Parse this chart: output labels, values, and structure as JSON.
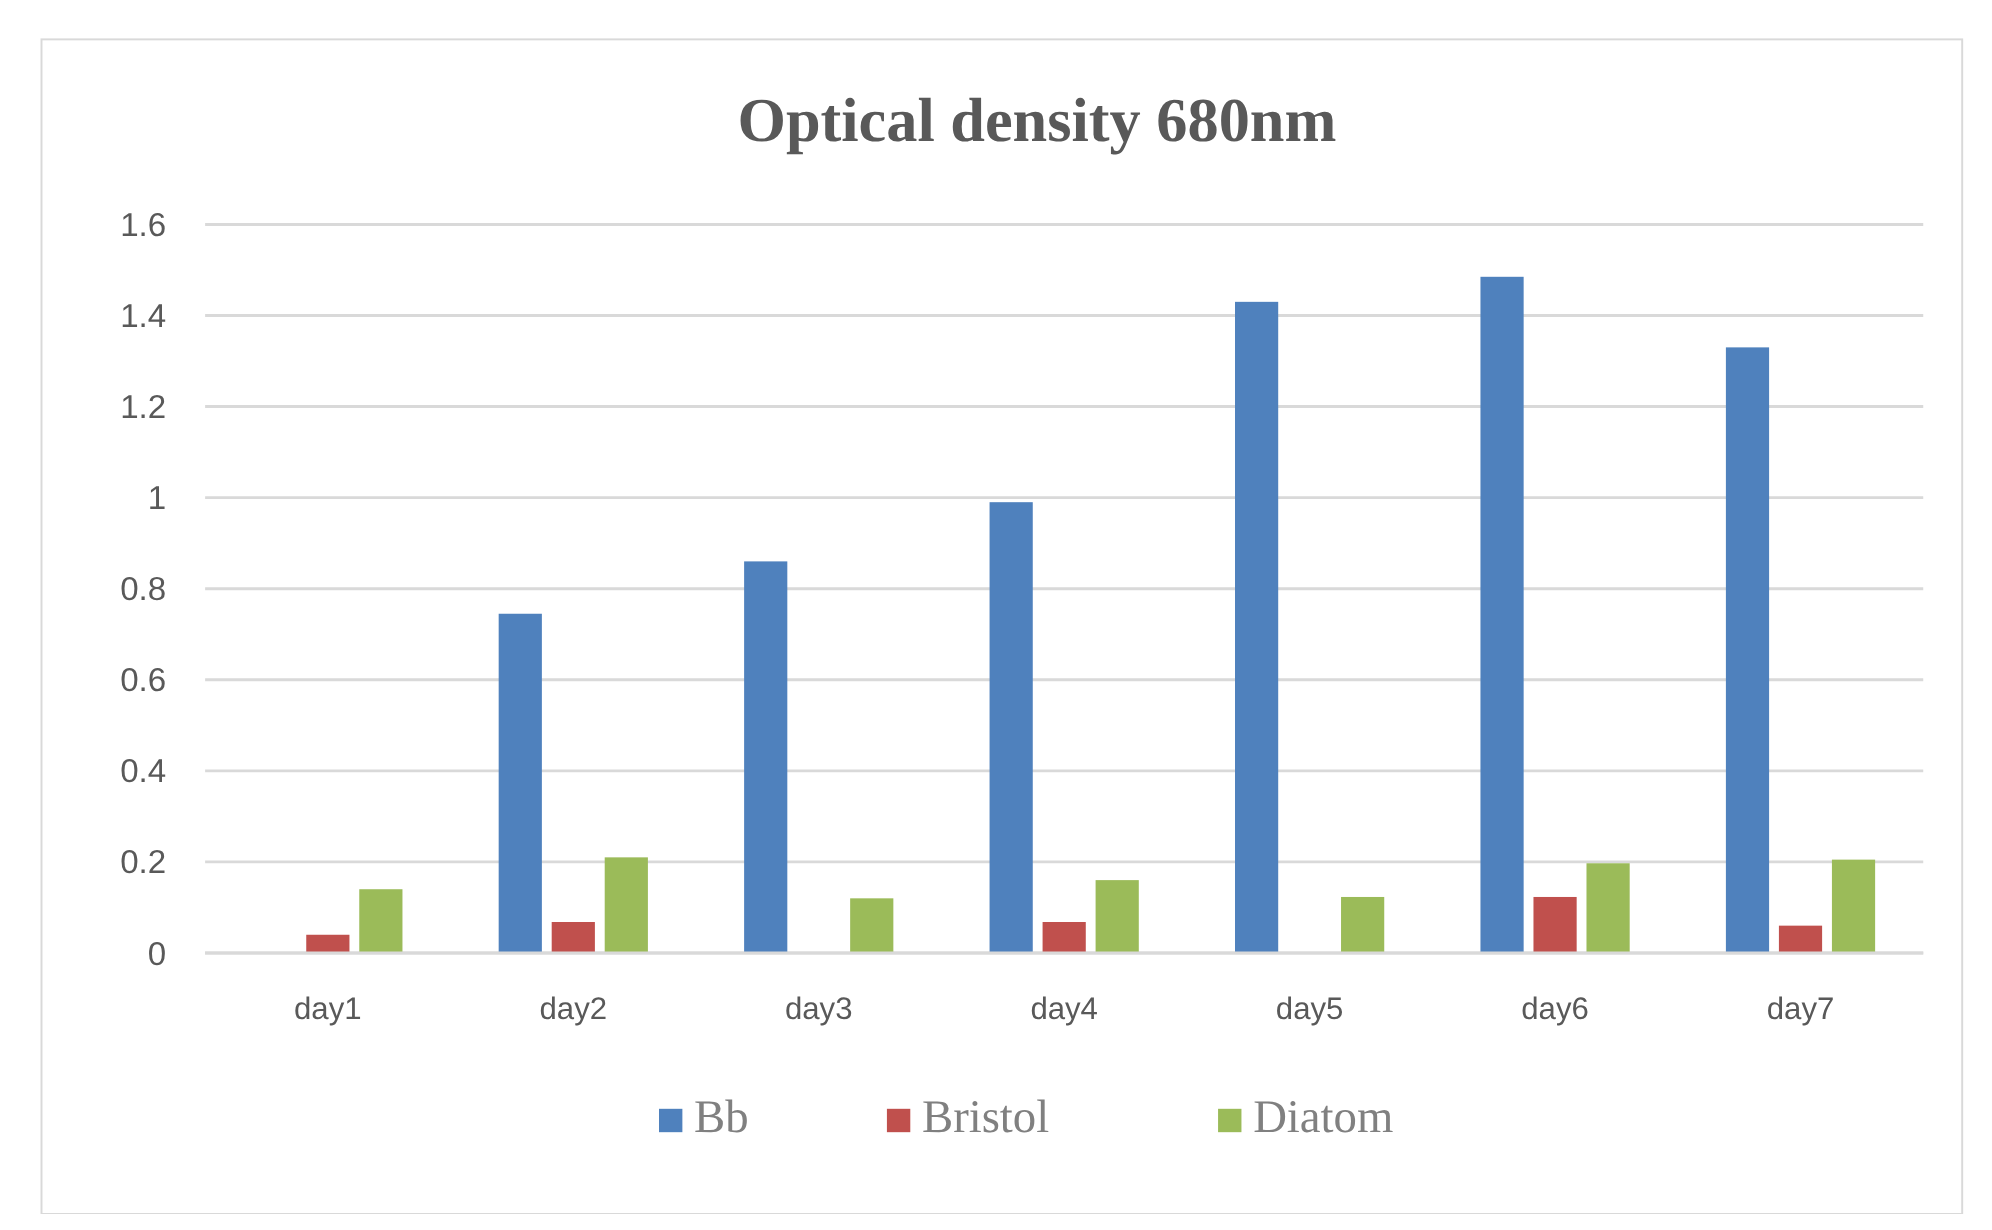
{
  "chart_data": {
    "type": "bar",
    "title": "Optical density 680nm",
    "categories": [
      "day1",
      "day2",
      "day3",
      "day4",
      "day5",
      "day6",
      "day7"
    ],
    "series": [
      {
        "name": "Bb",
        "color": "#4f81bd",
        "values": [
          null,
          0.745,
          0.86,
          0.99,
          1.43,
          1.485,
          1.33
        ]
      },
      {
        "name": "Bristol",
        "color": "#c0504d",
        "values": [
          0.04,
          0.068,
          null,
          0.068,
          null,
          0.123,
          0.06
        ]
      },
      {
        "name": "Diatom",
        "color": "#9bbb59",
        "values": [
          0.14,
          0.21,
          0.12,
          0.16,
          0.123,
          0.197,
          0.205
        ]
      }
    ],
    "ylim": [
      0,
      1.6
    ],
    "yticks": [
      0,
      0.2,
      0.4,
      0.6,
      0.8,
      1,
      1.2,
      1.4,
      1.6
    ],
    "grid": "y",
    "legend": "bottom"
  }
}
